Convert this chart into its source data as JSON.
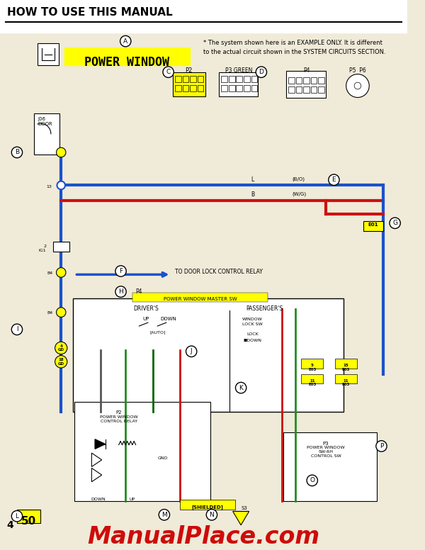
{
  "title": "HOW TO USE THIS MANUAL",
  "power_window_label": "POWER WINDOW",
  "note_text": "* The system shown here is an EXAMPLE ONLY. It is different\nto the actual circuit shown in the SYSTEM CIRCUITS SECTION.",
  "page_number": "4",
  "page_ref": "50",
  "watermark": "ManualPlace.com",
  "bg_color": "#f0ead8",
  "yellow": "#ffff00",
  "blue_line": "#1a52cc",
  "red_line": "#cc1111",
  "green_line": "#228B22",
  "dark_green_line": "#006400",
  "gray_line": "#555555",
  "watermark_color": "#cc0000",
  "wire_label_1": "(B/O)",
  "wire_label_2": "(W/G)"
}
